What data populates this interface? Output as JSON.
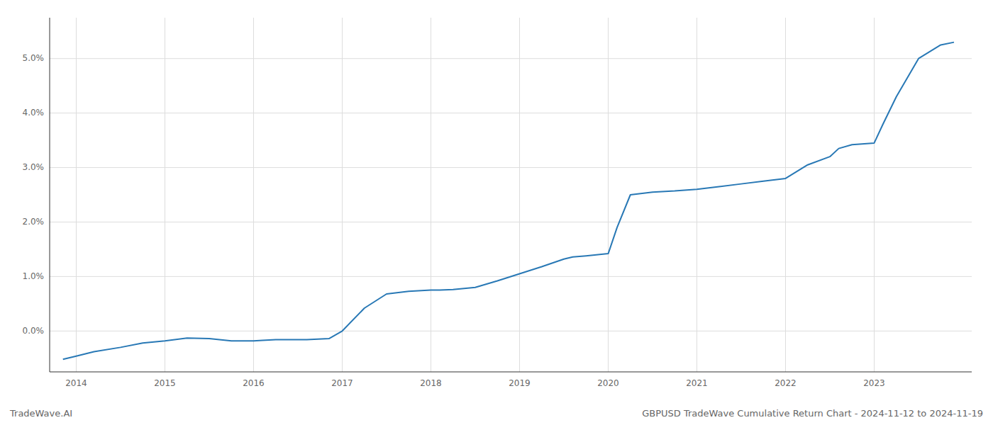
{
  "chart_data": {
    "type": "line",
    "title": "GBPUSD TradeWave Cumulative Return Chart - 2024-11-12 to 2024-11-19",
    "annotations": [
      "TradeWave.AI"
    ],
    "x": [
      2013.85,
      2014.0,
      2014.2,
      2014.5,
      2014.75,
      2015.0,
      2015.25,
      2015.5,
      2015.75,
      2016.0,
      2016.1,
      2016.25,
      2016.6,
      2016.85,
      2017.0,
      2017.25,
      2017.5,
      2017.75,
      2018.0,
      2018.1,
      2018.25,
      2018.5,
      2018.75,
      2019.0,
      2019.25,
      2019.5,
      2019.6,
      2019.75,
      2020.0,
      2020.1,
      2020.25,
      2020.5,
      2020.75,
      2021.0,
      2021.25,
      2021.5,
      2021.75,
      2022.0,
      2022.25,
      2022.5,
      2022.6,
      2022.75,
      2023.0,
      2023.1,
      2023.25,
      2023.5,
      2023.75,
      2023.9
    ],
    "values": [
      -0.52,
      -0.46,
      -0.38,
      -0.3,
      -0.22,
      -0.18,
      -0.13,
      -0.14,
      -0.18,
      -0.18,
      -0.17,
      -0.16,
      -0.16,
      -0.14,
      0.0,
      0.42,
      0.68,
      0.73,
      0.75,
      0.75,
      0.76,
      0.8,
      0.92,
      1.05,
      1.18,
      1.32,
      1.36,
      1.38,
      1.42,
      1.9,
      2.5,
      2.55,
      2.57,
      2.6,
      2.65,
      2.7,
      2.75,
      2.8,
      3.05,
      3.2,
      3.35,
      3.42,
      3.45,
      3.8,
      4.3,
      5.0,
      5.25,
      5.3
    ],
    "color": "#2878b5",
    "xlim": [
      2013.7,
      2024.1
    ],
    "ylim": [
      -0.75,
      5.75
    ],
    "xticks": [
      2014,
      2015,
      2016,
      2017,
      2018,
      2019,
      2020,
      2021,
      2022,
      2023
    ],
    "yticks": [
      {
        "value": 0.0,
        "label": "0.0%"
      },
      {
        "value": 1.0,
        "label": "1.0%"
      },
      {
        "value": 2.0,
        "label": "2.0%"
      },
      {
        "value": 3.0,
        "label": "3.0%"
      },
      {
        "value": 4.0,
        "label": "4.0%"
      },
      {
        "value": 5.0,
        "label": "5.0%"
      }
    ],
    "grid": true
  }
}
